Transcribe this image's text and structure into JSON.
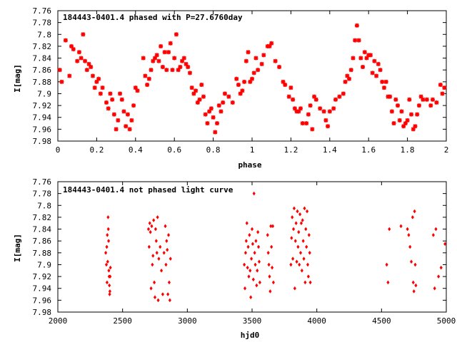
{
  "chart_data": [
    {
      "type": "scatter",
      "title": "184443-0401.4 phased with P=27.6760day",
      "xlabel": "phase",
      "ylabel": "I[mag]",
      "xlim": [
        0,
        2
      ],
      "ylim": [
        7.76,
        7.98
      ],
      "y_inverted": true,
      "grid": false,
      "marker_color": "#ff0000",
      "marker_style": "star",
      "x_ticks": [
        "0",
        "0.2",
        "0.4",
        "0.6",
        "0.8",
        "1",
        "1.2",
        "1.4",
        "1.6",
        "1.8",
        "2"
      ],
      "y_ticks": [
        "7.76",
        "7.78",
        "7.8",
        "7.82",
        "7.84",
        "7.86",
        "7.88",
        "7.9",
        "7.92",
        "7.94",
        "7.96",
        "7.98"
      ],
      "points": [
        [
          0.01,
          7.86
        ],
        [
          0.02,
          7.88
        ],
        [
          0.04,
          7.81
        ],
        [
          0.06,
          7.87
        ],
        [
          0.07,
          7.82
        ],
        [
          0.08,
          7.825
        ],
        [
          0.1,
          7.845
        ],
        [
          0.11,
          7.83
        ],
        [
          0.12,
          7.84
        ],
        [
          0.13,
          7.8
        ],
        [
          0.14,
          7.845
        ],
        [
          0.15,
          7.86
        ],
        [
          0.16,
          7.85
        ],
        [
          0.17,
          7.855
        ],
        [
          0.18,
          7.87
        ],
        [
          0.19,
          7.89
        ],
        [
          0.2,
          7.88
        ],
        [
          0.21,
          7.875
        ],
        [
          0.22,
          7.9
        ],
        [
          0.23,
          7.89
        ],
        [
          0.25,
          7.915
        ],
        [
          0.26,
          7.925
        ],
        [
          0.27,
          7.9
        ],
        [
          0.28,
          7.91
        ],
        [
          0.29,
          7.935
        ],
        [
          0.3,
          7.96
        ],
        [
          0.31,
          7.945
        ],
        [
          0.32,
          7.9
        ],
        [
          0.33,
          7.91
        ],
        [
          0.34,
          7.93
        ],
        [
          0.35,
          7.955
        ],
        [
          0.36,
          7.935
        ],
        [
          0.37,
          7.96
        ],
        [
          0.38,
          7.945
        ],
        [
          0.39,
          7.92
        ],
        [
          0.4,
          7.89
        ],
        [
          0.41,
          7.895
        ],
        [
          0.44,
          7.84
        ],
        [
          0.45,
          7.87
        ],
        [
          0.46,
          7.885
        ],
        [
          0.47,
          7.875
        ],
        [
          0.48,
          7.86
        ],
        [
          0.49,
          7.845
        ],
        [
          0.5,
          7.84
        ],
        [
          0.51,
          7.835
        ],
        [
          0.52,
          7.845
        ],
        [
          0.53,
          7.82
        ],
        [
          0.54,
          7.855
        ],
        [
          0.55,
          7.83
        ],
        [
          0.56,
          7.86
        ],
        [
          0.57,
          7.83
        ],
        [
          0.58,
          7.815
        ],
        [
          0.59,
          7.86
        ],
        [
          0.6,
          7.84
        ],
        [
          0.61,
          7.8
        ],
        [
          0.62,
          7.86
        ],
        [
          0.63,
          7.855
        ],
        [
          0.64,
          7.845
        ],
        [
          0.65,
          7.84
        ],
        [
          0.66,
          7.85
        ],
        [
          0.67,
          7.855
        ],
        [
          0.68,
          7.865
        ],
        [
          0.69,
          7.89
        ],
        [
          0.7,
          7.9
        ],
        [
          0.71,
          7.895
        ],
        [
          0.72,
          7.915
        ],
        [
          0.73,
          7.91
        ],
        [
          0.74,
          7.885
        ],
        [
          0.75,
          7.905
        ],
        [
          0.76,
          7.935
        ],
        [
          0.77,
          7.95
        ],
        [
          0.78,
          7.93
        ],
        [
          0.79,
          7.925
        ],
        [
          0.8,
          7.94
        ],
        [
          0.81,
          7.965
        ],
        [
          0.82,
          7.95
        ],
        [
          0.83,
          7.92
        ],
        [
          0.84,
          7.93
        ],
        [
          0.85,
          7.915
        ],
        [
          0.86,
          7.9
        ],
        [
          0.88,
          7.905
        ],
        [
          0.9,
          7.915
        ],
        [
          0.92,
          7.875
        ],
        [
          0.93,
          7.885
        ],
        [
          0.94,
          7.9
        ],
        [
          0.95,
          7.895
        ],
        [
          0.96,
          7.88
        ],
        [
          0.97,
          7.845
        ],
        [
          0.98,
          7.83
        ],
        [
          0.99,
          7.88
        ],
        [
          1.0,
          7.875
        ],
        [
          1.01,
          7.865
        ],
        [
          1.02,
          7.84
        ],
        [
          1.03,
          7.86
        ],
        [
          1.05,
          7.85
        ],
        [
          1.06,
          7.835
        ],
        [
          1.08,
          7.82
        ],
        [
          1.09,
          7.82
        ],
        [
          1.1,
          7.815
        ],
        [
          1.12,
          7.845
        ],
        [
          1.14,
          7.855
        ],
        [
          1.16,
          7.88
        ],
        [
          1.17,
          7.885
        ],
        [
          1.19,
          7.905
        ],
        [
          1.2,
          7.89
        ],
        [
          1.21,
          7.91
        ],
        [
          1.22,
          7.925
        ],
        [
          1.23,
          7.93
        ],
        [
          1.24,
          7.93
        ],
        [
          1.25,
          7.925
        ],
        [
          1.26,
          7.95
        ],
        [
          1.28,
          7.95
        ],
        [
          1.29,
          7.935
        ],
        [
          1.3,
          7.92
        ],
        [
          1.31,
          7.96
        ],
        [
          1.32,
          7.905
        ],
        [
          1.33,
          7.91
        ],
        [
          1.35,
          7.925
        ],
        [
          1.37,
          7.93
        ],
        [
          1.38,
          7.945
        ],
        [
          1.39,
          7.955
        ],
        [
          1.4,
          7.93
        ],
        [
          1.42,
          7.925
        ],
        [
          1.43,
          7.91
        ],
        [
          1.45,
          7.905
        ],
        [
          1.47,
          7.9
        ],
        [
          1.48,
          7.88
        ],
        [
          1.49,
          7.87
        ],
        [
          1.5,
          7.875
        ],
        [
          1.51,
          7.86
        ],
        [
          1.52,
          7.84
        ],
        [
          1.53,
          7.81
        ],
        [
          1.54,
          7.785
        ],
        [
          1.55,
          7.81
        ],
        [
          1.56,
          7.84
        ],
        [
          1.57,
          7.855
        ],
        [
          1.58,
          7.83
        ],
        [
          1.59,
          7.84
        ],
        [
          1.6,
          7.835
        ],
        [
          1.61,
          7.835
        ],
        [
          1.62,
          7.865
        ],
        [
          1.63,
          7.845
        ],
        [
          1.64,
          7.87
        ],
        [
          1.65,
          7.85
        ],
        [
          1.66,
          7.86
        ],
        [
          1.67,
          7.88
        ],
        [
          1.68,
          7.89
        ],
        [
          1.69,
          7.88
        ],
        [
          1.7,
          7.905
        ],
        [
          1.71,
          7.905
        ],
        [
          1.72,
          7.93
        ],
        [
          1.73,
          7.95
        ],
        [
          1.74,
          7.91
        ],
        [
          1.75,
          7.92
        ],
        [
          1.76,
          7.945
        ],
        [
          1.77,
          7.93
        ],
        [
          1.78,
          7.955
        ],
        [
          1.79,
          7.95
        ],
        [
          1.8,
          7.945
        ],
        [
          1.81,
          7.91
        ],
        [
          1.82,
          7.935
        ],
        [
          1.83,
          7.96
        ],
        [
          1.84,
          7.955
        ],
        [
          1.85,
          7.935
        ],
        [
          1.86,
          7.92
        ],
        [
          1.87,
          7.905
        ],
        [
          1.88,
          7.91
        ],
        [
          1.9,
          7.91
        ],
        [
          1.92,
          7.92
        ],
        [
          1.93,
          7.91
        ],
        [
          1.95,
          7.915
        ],
        [
          1.97,
          7.885
        ],
        [
          1.98,
          7.9
        ],
        [
          1.99,
          7.89
        ]
      ]
    },
    {
      "type": "scatter",
      "title": "184443-0401.4 not phased light curve",
      "xlabel": "hjd0",
      "ylabel": "I[mag]",
      "xlim": [
        2000,
        5000
      ],
      "ylim": [
        7.76,
        7.98
      ],
      "y_inverted": true,
      "grid": false,
      "marker_color": "#ff0000",
      "marker_style": "diamond",
      "x_ticks": [
        "2000",
        "2500",
        "3000",
        "3500",
        "4000",
        "4500",
        "5000"
      ],
      "y_ticks": [
        "7.76",
        "7.78",
        "7.8",
        "7.82",
        "7.84",
        "7.86",
        "7.88",
        "7.9",
        "7.92",
        "7.94",
        "7.96",
        "7.98"
      ],
      "points": [
        [
          2370,
          7.88
        ],
        [
          2375,
          7.9
        ],
        [
          2378,
          7.87
        ],
        [
          2380,
          7.93
        ],
        [
          2382,
          7.85
        ],
        [
          2385,
          7.895
        ],
        [
          2388,
          7.82
        ],
        [
          2390,
          7.84
        ],
        [
          2392,
          7.86
        ],
        [
          2394,
          7.91
        ],
        [
          2396,
          7.92
        ],
        [
          2398,
          7.935
        ],
        [
          2400,
          7.95
        ],
        [
          2402,
          7.945
        ],
        [
          2404,
          7.92
        ],
        [
          2406,
          7.905
        ],
        [
          2700,
          7.84
        ],
        [
          2705,
          7.87
        ],
        [
          2710,
          7.83
        ],
        [
          2715,
          7.845
        ],
        [
          2720,
          7.94
        ],
        [
          2725,
          7.835
        ],
        [
          2730,
          7.9
        ],
        [
          2735,
          7.885
        ],
        [
          2740,
          7.825
        ],
        [
          2745,
          7.93
        ],
        [
          2750,
          7.955
        ],
        [
          2755,
          7.84
        ],
        [
          2760,
          7.86
        ],
        [
          2765,
          7.88
        ],
        [
          2770,
          7.82
        ],
        [
          2775,
          7.96
        ],
        [
          2780,
          7.89
        ],
        [
          2790,
          7.87
        ],
        [
          2800,
          7.91
        ],
        [
          2810,
          7.95
        ],
        [
          2820,
          7.88
        ],
        [
          2830,
          7.835
        ],
        [
          2835,
          7.9
        ],
        [
          2840,
          7.86
        ],
        [
          2845,
          7.875
        ],
        [
          2850,
          7.95
        ],
        [
          2855,
          7.85
        ],
        [
          2860,
          7.93
        ],
        [
          2865,
          7.96
        ],
        [
          2870,
          7.89
        ],
        [
          3440,
          7.9
        ],
        [
          3445,
          7.94
        ],
        [
          3450,
          7.88
        ],
        [
          3455,
          7.86
        ],
        [
          3460,
          7.83
        ],
        [
          3465,
          7.905
        ],
        [
          3470,
          7.87
        ],
        [
          3475,
          7.92
        ],
        [
          3480,
          7.85
        ],
        [
          3485,
          7.91
        ],
        [
          3490,
          7.955
        ],
        [
          3495,
          7.89
        ],
        [
          3500,
          7.84
        ],
        [
          3505,
          7.865
        ],
        [
          3510,
          7.925
        ],
        [
          3515,
          7.78
        ],
        [
          3520,
          7.88
        ],
        [
          3525,
          7.9
        ],
        [
          3530,
          7.86
        ],
        [
          3535,
          7.935
        ],
        [
          3540,
          7.91
        ],
        [
          3545,
          7.845
        ],
        [
          3550,
          7.87
        ],
        [
          3555,
          7.895
        ],
        [
          3560,
          7.93
        ],
        [
          3620,
          7.85
        ],
        [
          3625,
          7.88
        ],
        [
          3630,
          7.9
        ],
        [
          3635,
          7.92
        ],
        [
          3640,
          7.945
        ],
        [
          3645,
          7.835
        ],
        [
          3650,
          7.87
        ],
        [
          3655,
          7.905
        ],
        [
          3660,
          7.835
        ],
        [
          3665,
          7.93
        ],
        [
          3800,
          7.9
        ],
        [
          3805,
          7.855
        ],
        [
          3810,
          7.82
        ],
        [
          3815,
          7.89
        ],
        [
          3820,
          7.84
        ],
        [
          3825,
          7.805
        ],
        [
          3830,
          7.94
        ],
        [
          3835,
          7.86
        ],
        [
          3840,
          7.83
        ],
        [
          3845,
          7.895
        ],
        [
          3850,
          7.81
        ],
        [
          3855,
          7.87
        ],
        [
          3860,
          7.845
        ],
        [
          3865,
          7.9
        ],
        [
          3870,
          7.815
        ],
        [
          3875,
          7.88
        ],
        [
          3880,
          7.83
        ],
        [
          3885,
          7.91
        ],
        [
          3890,
          7.825
        ],
        [
          3895,
          7.86
        ],
        [
          3900,
          7.89
        ],
        [
          3905,
          7.805
        ],
        [
          3910,
          7.93
        ],
        [
          3915,
          7.84
        ],
        [
          3920,
          7.87
        ],
        [
          3925,
          7.81
        ],
        [
          3930,
          7.9
        ],
        [
          3935,
          7.92
        ],
        [
          3940,
          7.85
        ],
        [
          3945,
          7.88
        ],
        [
          3950,
          7.93
        ],
        [
          4540,
          7.9
        ],
        [
          4550,
          7.93
        ],
        [
          4560,
          7.84
        ],
        [
          4650,
          7.835
        ],
        [
          4700,
          7.84
        ],
        [
          4710,
          7.85
        ],
        [
          4720,
          7.87
        ],
        [
          4730,
          7.895
        ],
        [
          4740,
          7.82
        ],
        [
          4745,
          7.93
        ],
        [
          4750,
          7.945
        ],
        [
          4755,
          7.81
        ],
        [
          4760,
          7.9
        ],
        [
          4765,
          7.935
        ],
        [
          4900,
          7.85
        ],
        [
          4910,
          7.94
        ],
        [
          4920,
          7.84
        ],
        [
          4940,
          7.92
        ],
        [
          4960,
          7.905
        ],
        [
          4990,
          7.865
        ]
      ]
    }
  ]
}
